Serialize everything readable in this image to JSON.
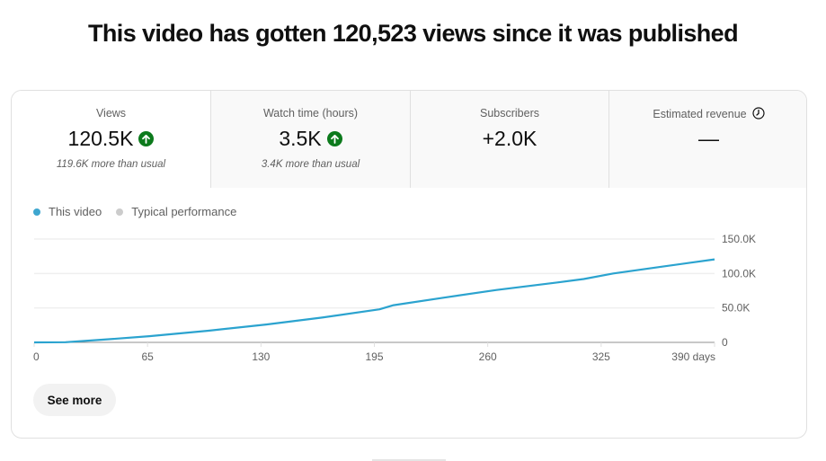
{
  "headline": "This video has gotten 120,523 views since it was published",
  "tabs": [
    {
      "label": "Views",
      "value": "120.5K",
      "trend": "up",
      "subtext": "119.6K more than usual",
      "selected": true
    },
    {
      "label": "Watch time (hours)",
      "value": "3.5K",
      "trend": "up",
      "subtext": "3.4K more than usual",
      "selected": false
    },
    {
      "label": "Subscribers",
      "value": "+2.0K",
      "trend": null,
      "subtext": "",
      "selected": false
    },
    {
      "label": "Estimated revenue",
      "value": "—",
      "trend": null,
      "subtext": "",
      "selected": false,
      "icon": "clock-icon"
    }
  ],
  "legend": [
    {
      "label": "This video",
      "color": "#3ea6cf"
    },
    {
      "label": "Typical performance",
      "color": "#cccccc"
    }
  ],
  "see_more_label": "See more",
  "colors": {
    "line": "#2ba3cf",
    "trend_up": "#0c7a1c",
    "grid": "#efefef",
    "axis": "#909090"
  },
  "chart_data": {
    "type": "line",
    "title": "This video has gotten 120,523 views since it was published",
    "xlabel": "days",
    "ylabel": "Views",
    "x_ticks": [
      "0",
      "65",
      "130",
      "195",
      "260",
      "325",
      "390 days"
    ],
    "y_ticks": [
      "0",
      "50.0K",
      "100.0K",
      "150.0K"
    ],
    "xlim": [
      0,
      390
    ],
    "ylim": [
      0,
      150000
    ],
    "grid": true,
    "legend_position": "top-left",
    "series": [
      {
        "name": "This video",
        "x": [
          0,
          18,
          40,
          66,
          100,
          133,
          165,
          198,
          206,
          235,
          265,
          300,
          315,
          332,
          360,
          390
        ],
        "values": [
          0,
          300,
          4000,
          9000,
          17000,
          26000,
          36000,
          48000,
          54000,
          65000,
          76000,
          87000,
          92000,
          100000,
          110000,
          120523
        ]
      },
      {
        "name": "Typical performance",
        "x": [],
        "values": []
      }
    ]
  }
}
